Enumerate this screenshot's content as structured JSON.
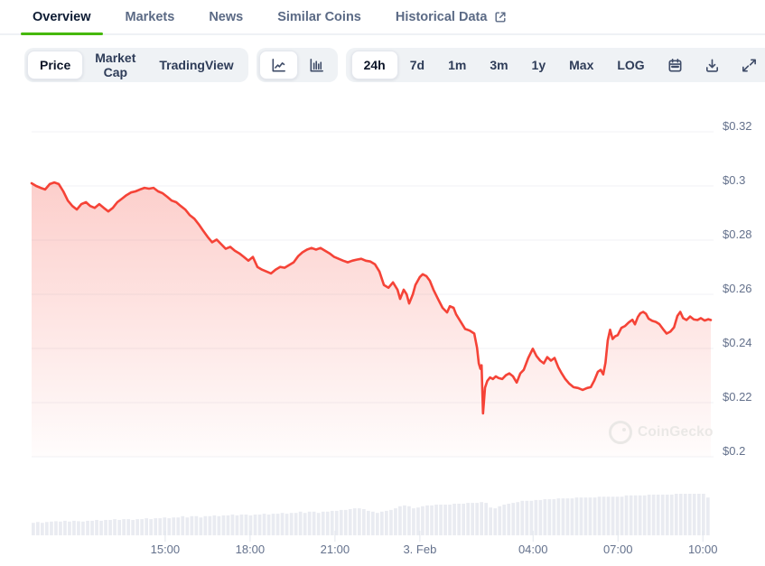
{
  "tabs": {
    "items": [
      {
        "label": "Overview",
        "active": true
      },
      {
        "label": "Markets",
        "active": false
      },
      {
        "label": "News",
        "active": false
      },
      {
        "label": "Similar Coins",
        "active": false
      },
      {
        "label": "Historical Data",
        "active": false,
        "icon": "external-link-icon"
      }
    ]
  },
  "toolbar": {
    "metric_group": [
      {
        "label": "Price",
        "active": true
      },
      {
        "label": "Market Cap",
        "active": false
      },
      {
        "label": "TradingView",
        "active": false
      }
    ],
    "chart_type_group": [
      {
        "icon": "line-chart-icon",
        "active": true
      },
      {
        "icon": "candlestick-chart-icon",
        "active": false
      }
    ],
    "range_group": [
      {
        "label": "24h",
        "active": true
      },
      {
        "label": "7d",
        "active": false
      },
      {
        "label": "1m",
        "active": false
      },
      {
        "label": "3m",
        "active": false
      },
      {
        "label": "1y",
        "active": false
      },
      {
        "label": "Max",
        "active": false
      },
      {
        "label": "LOG",
        "active": false
      }
    ],
    "action_icons": [
      "calendar-icon",
      "download-icon",
      "fullscreen-icon"
    ]
  },
  "watermark": {
    "label": "CoinGecko"
  },
  "chart_data": {
    "type": "line",
    "title": "",
    "legend": "none",
    "grid": "horizontal",
    "line_color": "#f54337",
    "area_color": "#f54337",
    "volume_color": "#e9ebf1",
    "label_color": "#64718c",
    "grid_color": "#f0f2f5",
    "tick_color": "#e2e6ed",
    "x_axis": {
      "unit": "hours since window start (~10:15, 2 Feb)",
      "span_hours": 24,
      "ticks": [
        {
          "label": "15:00",
          "hour": 4.72
        },
        {
          "label": "18:00",
          "hour": 7.72
        },
        {
          "label": "21:00",
          "hour": 10.72
        },
        {
          "label": "3. Feb",
          "hour": 13.72
        },
        {
          "label": "04:00",
          "hour": 17.72
        },
        {
          "label": "07:00",
          "hour": 20.72
        },
        {
          "label": "10:00",
          "hour": 23.72
        }
      ]
    },
    "y_axis": {
      "unit": "USD",
      "range": [
        0.1975,
        0.326
      ],
      "ticks": [
        {
          "label": "$0.32",
          "value": 0.32
        },
        {
          "label": "$0.3",
          "value": 0.3
        },
        {
          "label": "$0.28",
          "value": 0.28
        },
        {
          "label": "$0.26",
          "value": 0.26
        },
        {
          "label": "$0.24",
          "value": 0.24
        },
        {
          "label": "$0.22",
          "value": 0.22
        },
        {
          "label": "$0.2",
          "value": 0.2
        }
      ]
    },
    "series": [
      {
        "name": "price_usd",
        "points": [
          [
            0.0,
            0.301
          ],
          [
            0.16,
            0.3
          ],
          [
            0.32,
            0.2993
          ],
          [
            0.48,
            0.2987
          ],
          [
            0.64,
            0.3007
          ],
          [
            0.8,
            0.3013
          ],
          [
            0.96,
            0.3007
          ],
          [
            1.12,
            0.298
          ],
          [
            1.28,
            0.2946
          ],
          [
            1.44,
            0.2926
          ],
          [
            1.6,
            0.2913
          ],
          [
            1.76,
            0.2933
          ],
          [
            1.92,
            0.294
          ],
          [
            2.07,
            0.2926
          ],
          [
            2.23,
            0.2919
          ],
          [
            2.39,
            0.2933
          ],
          [
            2.55,
            0.2919
          ],
          [
            2.71,
            0.2906
          ],
          [
            2.87,
            0.2919
          ],
          [
            3.03,
            0.294
          ],
          [
            3.19,
            0.2953
          ],
          [
            3.35,
            0.2966
          ],
          [
            3.51,
            0.2976
          ],
          [
            3.67,
            0.298
          ],
          [
            3.83,
            0.2987
          ],
          [
            3.99,
            0.2993
          ],
          [
            4.15,
            0.299
          ],
          [
            4.31,
            0.2993
          ],
          [
            4.47,
            0.298
          ],
          [
            4.63,
            0.2973
          ],
          [
            4.79,
            0.296
          ],
          [
            4.95,
            0.2946
          ],
          [
            5.11,
            0.294
          ],
          [
            5.27,
            0.2926
          ],
          [
            5.43,
            0.2913
          ],
          [
            5.59,
            0.2892
          ],
          [
            5.75,
            0.2879
          ],
          [
            5.9,
            0.2859
          ],
          [
            6.06,
            0.2835
          ],
          [
            6.22,
            0.2812
          ],
          [
            6.38,
            0.2792
          ],
          [
            6.54,
            0.2802
          ],
          [
            6.7,
            0.2785
          ],
          [
            6.86,
            0.2768
          ],
          [
            7.02,
            0.2775
          ],
          [
            7.18,
            0.2761
          ],
          [
            7.34,
            0.2751
          ],
          [
            7.5,
            0.2738
          ],
          [
            7.66,
            0.2724
          ],
          [
            7.82,
            0.2738
          ],
          [
            7.98,
            0.2701
          ],
          [
            8.14,
            0.2691
          ],
          [
            8.3,
            0.2684
          ],
          [
            8.46,
            0.2677
          ],
          [
            8.62,
            0.2691
          ],
          [
            8.78,
            0.2701
          ],
          [
            8.94,
            0.2698
          ],
          [
            9.1,
            0.2708
          ],
          [
            9.26,
            0.2718
          ],
          [
            9.42,
            0.2741
          ],
          [
            9.57,
            0.2755
          ],
          [
            9.73,
            0.2765
          ],
          [
            9.89,
            0.2771
          ],
          [
            10.05,
            0.2765
          ],
          [
            10.21,
            0.2771
          ],
          [
            10.37,
            0.2761
          ],
          [
            10.53,
            0.2751
          ],
          [
            10.69,
            0.2738
          ],
          [
            10.85,
            0.2731
          ],
          [
            11.01,
            0.2724
          ],
          [
            11.17,
            0.2718
          ],
          [
            11.33,
            0.2724
          ],
          [
            11.49,
            0.2728
          ],
          [
            11.65,
            0.2731
          ],
          [
            11.81,
            0.2724
          ],
          [
            11.97,
            0.2721
          ],
          [
            12.13,
            0.2711
          ],
          [
            12.29,
            0.2684
          ],
          [
            12.45,
            0.2634
          ],
          [
            12.61,
            0.2624
          ],
          [
            12.77,
            0.2644
          ],
          [
            12.93,
            0.2617
          ],
          [
            13.02,
            0.2583
          ],
          [
            13.15,
            0.2617
          ],
          [
            13.25,
            0.26
          ],
          [
            13.34,
            0.2566
          ],
          [
            13.47,
            0.26
          ],
          [
            13.56,
            0.2634
          ],
          [
            13.72,
            0.2664
          ],
          [
            13.82,
            0.2674
          ],
          [
            13.95,
            0.2667
          ],
          [
            14.07,
            0.265
          ],
          [
            14.2,
            0.2617
          ],
          [
            14.36,
            0.2583
          ],
          [
            14.52,
            0.255
          ],
          [
            14.68,
            0.2533
          ],
          [
            14.78,
            0.2556
          ],
          [
            14.91,
            0.255
          ],
          [
            15.0,
            0.2526
          ],
          [
            15.16,
            0.2499
          ],
          [
            15.32,
            0.2472
          ],
          [
            15.48,
            0.2466
          ],
          [
            15.64,
            0.2455
          ],
          [
            15.74,
            0.2402
          ],
          [
            15.8,
            0.2345
          ],
          [
            15.86,
            0.2325
          ],
          [
            15.9,
            0.2338
          ],
          [
            15.95,
            0.216
          ],
          [
            16.02,
            0.2255
          ],
          [
            16.1,
            0.228
          ],
          [
            16.2,
            0.2293
          ],
          [
            16.3,
            0.2287
          ],
          [
            16.4,
            0.2297
          ],
          [
            16.5,
            0.2291
          ],
          [
            16.63,
            0.2287
          ],
          [
            16.76,
            0.2301
          ],
          [
            16.88,
            0.2308
          ],
          [
            17.01,
            0.2297
          ],
          [
            17.14,
            0.2274
          ],
          [
            17.27,
            0.2308
          ],
          [
            17.39,
            0.2321
          ],
          [
            17.55,
            0.2365
          ],
          [
            17.71,
            0.2399
          ],
          [
            17.84,
            0.2372
          ],
          [
            17.97,
            0.2355
          ],
          [
            18.1,
            0.2345
          ],
          [
            18.22,
            0.2368
          ],
          [
            18.35,
            0.2355
          ],
          [
            18.48,
            0.2365
          ],
          [
            18.61,
            0.2331
          ],
          [
            18.73,
            0.2308
          ],
          [
            18.86,
            0.2287
          ],
          [
            18.99,
            0.2271
          ],
          [
            19.15,
            0.2257
          ],
          [
            19.31,
            0.2254
          ],
          [
            19.47,
            0.2247
          ],
          [
            19.63,
            0.2254
          ],
          [
            19.76,
            0.2257
          ],
          [
            19.88,
            0.2281
          ],
          [
            20.01,
            0.2314
          ],
          [
            20.11,
            0.2321
          ],
          [
            20.2,
            0.2304
          ],
          [
            20.28,
            0.2348
          ],
          [
            20.36,
            0.243
          ],
          [
            20.44,
            0.2469
          ],
          [
            20.53,
            0.2435
          ],
          [
            20.62,
            0.2445
          ],
          [
            20.71,
            0.2449
          ],
          [
            20.84,
            0.2476
          ],
          [
            20.97,
            0.2483
          ],
          [
            21.1,
            0.2496
          ],
          [
            21.23,
            0.2506
          ],
          [
            21.32,
            0.2489
          ],
          [
            21.42,
            0.2516
          ],
          [
            21.51,
            0.253
          ],
          [
            21.61,
            0.2535
          ],
          [
            21.71,
            0.2528
          ],
          [
            21.8,
            0.251
          ],
          [
            21.93,
            0.2502
          ],
          [
            22.06,
            0.2498
          ],
          [
            22.18,
            0.249
          ],
          [
            22.31,
            0.2472
          ],
          [
            22.44,
            0.2455
          ],
          [
            22.57,
            0.2462
          ],
          [
            22.7,
            0.2478
          ],
          [
            22.82,
            0.252
          ],
          [
            22.92,
            0.2535
          ],
          [
            23.02,
            0.2512
          ],
          [
            23.14,
            0.2505
          ],
          [
            23.27,
            0.2518
          ],
          [
            23.4,
            0.2507
          ],
          [
            23.53,
            0.2505
          ],
          [
            23.65,
            0.2512
          ],
          [
            23.78,
            0.2503
          ],
          [
            23.91,
            0.2508
          ],
          [
            24.0,
            0.2505
          ]
        ]
      }
    ],
    "volume_rel": [
      0.3,
      0.32,
      0.3,
      0.32,
      0.33,
      0.34,
      0.33,
      0.35,
      0.33,
      0.35,
      0.34,
      0.33,
      0.35,
      0.35,
      0.37,
      0.35,
      0.37,
      0.37,
      0.39,
      0.37,
      0.39,
      0.39,
      0.37,
      0.39,
      0.39,
      0.41,
      0.39,
      0.41,
      0.41,
      0.43,
      0.41,
      0.43,
      0.43,
      0.46,
      0.43,
      0.46,
      0.46,
      0.43,
      0.46,
      0.46,
      0.48,
      0.46,
      0.48,
      0.48,
      0.5,
      0.48,
      0.5,
      0.5,
      0.48,
      0.5,
      0.5,
      0.52,
      0.5,
      0.52,
      0.52,
      0.54,
      0.52,
      0.54,
      0.54,
      0.57,
      0.54,
      0.57,
      0.57,
      0.54,
      0.57,
      0.57,
      0.59,
      0.59,
      0.61,
      0.61,
      0.63,
      0.65,
      0.65,
      0.63,
      0.59,
      0.57,
      0.54,
      0.57,
      0.59,
      0.61,
      0.65,
      0.7,
      0.72,
      0.7,
      0.65,
      0.67,
      0.7,
      0.72,
      0.72,
      0.74,
      0.74,
      0.74,
      0.74,
      0.76,
      0.76,
      0.76,
      0.78,
      0.78,
      0.78,
      0.8,
      0.78,
      0.67,
      0.65,
      0.7,
      0.74,
      0.76,
      0.78,
      0.8,
      0.83,
      0.83,
      0.83,
      0.85,
      0.85,
      0.87,
      0.87,
      0.87,
      0.89,
      0.89,
      0.89,
      0.89,
      0.91,
      0.91,
      0.91,
      0.91,
      0.91,
      0.93,
      0.93,
      0.93,
      0.93,
      0.93,
      0.93,
      0.96,
      0.96,
      0.96,
      0.96,
      0.96,
      0.98,
      0.98,
      0.98,
      0.98,
      0.98,
      0.98,
      1.0,
      1.0,
      1.0,
      1.0,
      1.0,
      1.0,
      1.0,
      0.91
    ]
  }
}
